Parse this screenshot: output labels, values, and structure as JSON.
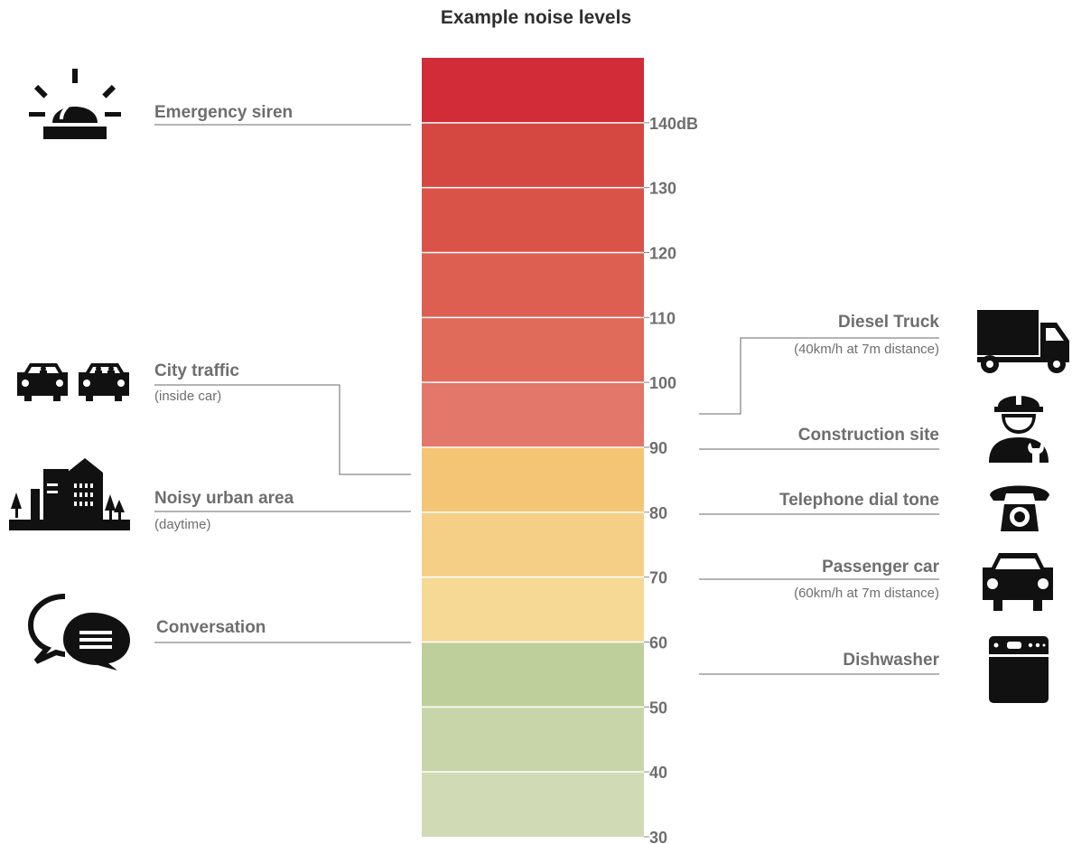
{
  "title": "Example noise levels",
  "scale": {
    "unit": "dB",
    "min": 30,
    "max": 150,
    "band_step": 10,
    "band_colors": [
      "#d0dbb6",
      "#c8d5a9",
      "#bfcf9b",
      "#f5d995",
      "#f5cf86",
      "#f3c575",
      "#e2776a",
      "#e06b5b",
      "#dd5f51",
      "#d95349",
      "#d54741",
      "#d12c37"
    ],
    "ticks": [
      {
        "value": 140,
        "label": "140dB"
      },
      {
        "value": 130,
        "label": "130"
      },
      {
        "value": 120,
        "label": "120"
      },
      {
        "value": 110,
        "label": "110"
      },
      {
        "value": 100,
        "label": "100"
      },
      {
        "value": 90,
        "label": "90"
      },
      {
        "value": 80,
        "label": "80"
      },
      {
        "value": 70,
        "label": "70"
      },
      {
        "value": 60,
        "label": "60"
      },
      {
        "value": 50,
        "label": "50"
      },
      {
        "value": 40,
        "label": "40"
      },
      {
        "value": 30,
        "label": "30"
      }
    ]
  },
  "left": {
    "emergency_siren": {
      "label": "Emergency siren",
      "db": 140,
      "icon": "siren-icon"
    },
    "city_traffic": {
      "label": "City traffic",
      "note": "(inside car)",
      "db": 85,
      "icon": "cars-icon"
    },
    "noisy_urban": {
      "label": "Noisy urban area",
      "note": "(daytime)",
      "db": 80,
      "icon": "city-icon"
    },
    "conversation": {
      "label": "Conversation",
      "db": 60,
      "icon": "speech-bubbles-icon"
    }
  },
  "right": {
    "diesel_truck": {
      "label": "Diesel Truck",
      "note": "(40km/h at 7m distance)",
      "db": 95,
      "icon": "truck-icon"
    },
    "construction_site": {
      "label": "Construction site",
      "db": 90,
      "icon": "construction-worker-icon"
    },
    "telephone": {
      "label": "Telephone dial tone",
      "db": 80,
      "icon": "telephone-icon"
    },
    "passenger_car": {
      "label": "Passenger car",
      "note": "(60km/h at 7m distance)",
      "db": 70,
      "icon": "car-icon"
    },
    "dishwasher": {
      "label": "Dishwasher",
      "db": 55,
      "icon": "dishwasher-icon"
    }
  },
  "colors": {
    "text": "#6e6e6e",
    "title": "#2f2f2f",
    "leader": "#888888",
    "icon": "#111111"
  }
}
